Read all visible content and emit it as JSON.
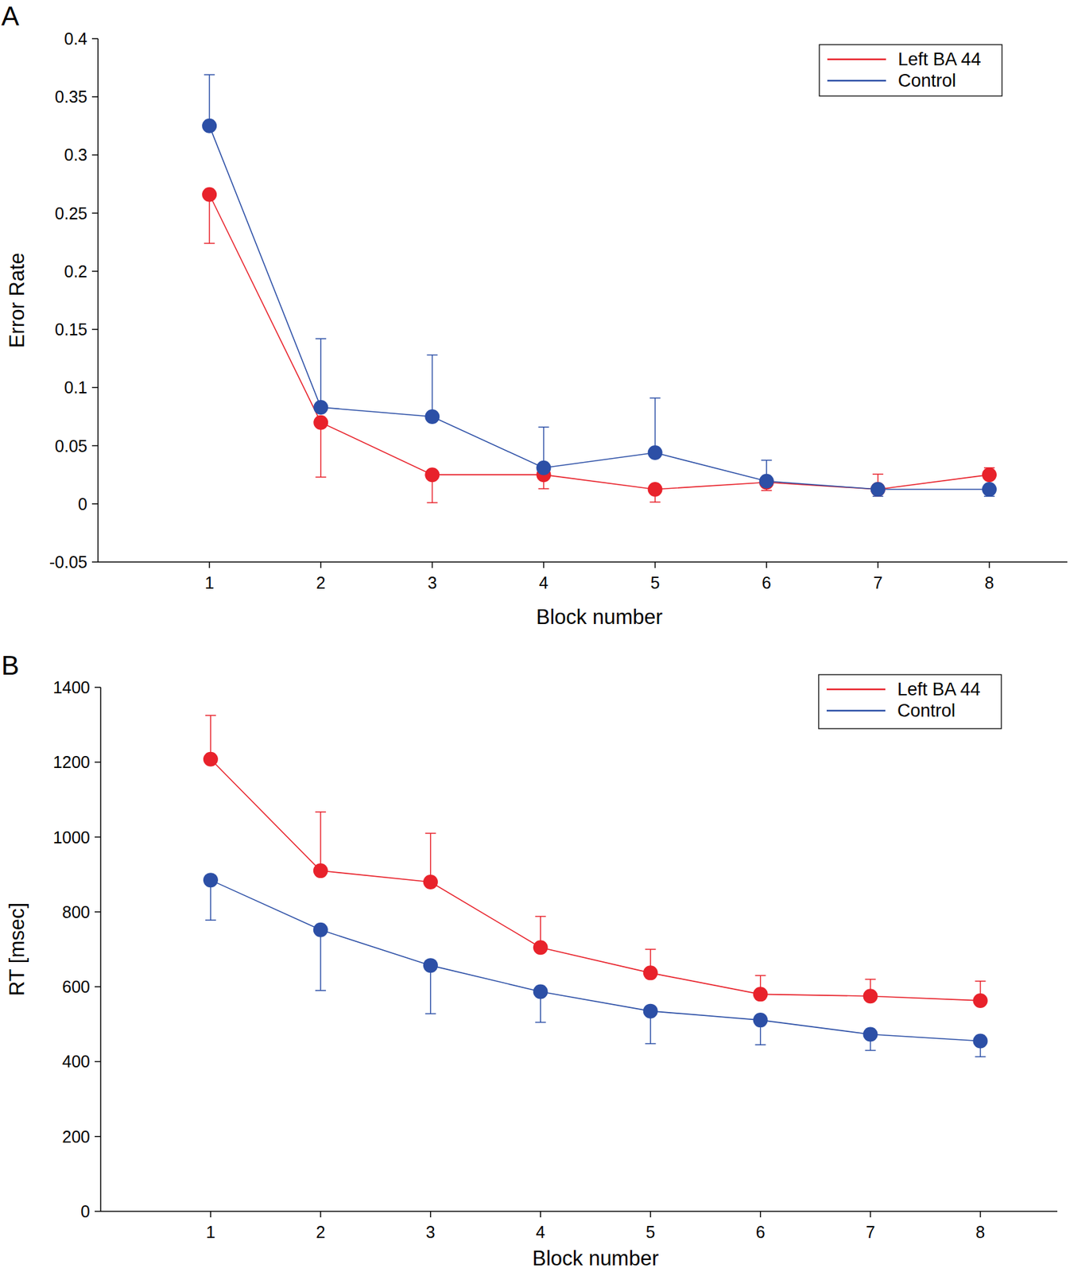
{
  "chart_data": [
    {
      "type": "line",
      "panel": "A",
      "x_label": "Block number",
      "y_label": "Error Rate",
      "x": [
        1,
        2,
        3,
        4,
        5,
        6,
        7,
        8
      ],
      "xlim": [
        0,
        8.7
      ],
      "xticks": [
        1,
        2,
        3,
        4,
        5,
        6,
        7,
        8
      ],
      "ylim": [
        -0.05,
        0.4
      ],
      "yticks": [
        -0.05,
        0,
        0.05,
        0.1,
        0.15,
        0.2,
        0.25,
        0.3,
        0.35,
        0.4
      ],
      "legend": "top-right",
      "marker": "circle",
      "line_style": "solid",
      "series": [
        {
          "name": "Left BA 44",
          "color": "#e8222b",
          "values": [
            0.266,
            0.07,
            0.025,
            0.025,
            0.0125,
            0.0185,
            0.0125,
            0.025
          ],
          "errors": [
            0.042,
            0.047,
            0.024,
            0.012,
            0.011,
            0.007,
            0.013,
            0.006
          ]
        },
        {
          "name": "Control",
          "color": "#2c4fa6",
          "values": [
            0.325,
            0.083,
            0.075,
            0.031,
            0.044,
            0.0195,
            0.0125,
            0.0125
          ],
          "errors": [
            0.044,
            0.059,
            0.053,
            0.035,
            0.047,
            0.018,
            0.006,
            0.006
          ]
        }
      ]
    },
    {
      "type": "line",
      "panel": "B",
      "x_label": "Block number",
      "y_label": "RT [msec]",
      "x": [
        1,
        2,
        3,
        4,
        5,
        6,
        7,
        8
      ],
      "xlim": [
        0,
        8.7
      ],
      "xticks": [
        1,
        2,
        3,
        4,
        5,
        6,
        7,
        8
      ],
      "ylim": [
        0,
        1400
      ],
      "yticks": [
        0,
        200,
        400,
        600,
        800,
        1000,
        1200,
        1400
      ],
      "legend": "top-right",
      "marker": "circle",
      "line_style": "solid",
      "series": [
        {
          "name": "Left BA 44",
          "color": "#e8222b",
          "values": [
            1208,
            910,
            880,
            705,
            637,
            580,
            575,
            563
          ],
          "errors": [
            117,
            157,
            130,
            83,
            63,
            50,
            45,
            52
          ]
        },
        {
          "name": "Control",
          "color": "#2c4fa6",
          "values": [
            885,
            752,
            657,
            587,
            535,
            511,
            473,
            455
          ],
          "errors": [
            107,
            162,
            129,
            82,
            87,
            66,
            43,
            42
          ]
        }
      ]
    }
  ]
}
